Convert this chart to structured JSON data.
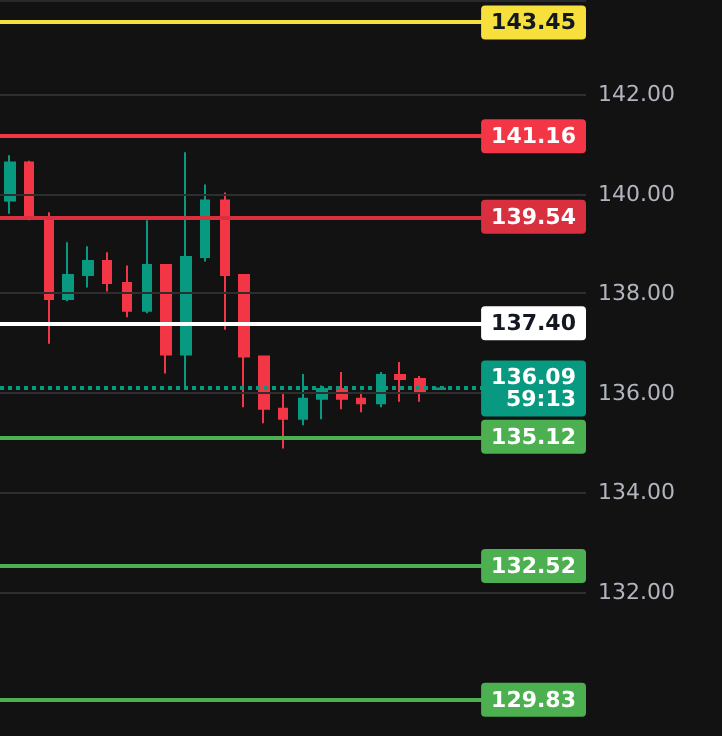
{
  "chart_data": {
    "type": "candlestick",
    "categories": [
      null,
      null,
      null,
      null,
      null,
      null,
      null,
      null,
      null,
      null,
      null,
      null,
      null,
      null,
      null,
      null,
      null,
      null,
      null,
      null,
      null,
      null,
      null,
      null,
      null,
      null,
      null,
      null,
      null,
      null
    ],
    "ohlc": [
      [
        139.87,
        140.78,
        139.6,
        140.63
      ],
      [
        140.63,
        140.67,
        139.47,
        139.5
      ],
      [
        139.51,
        139.63,
        136.99,
        137.89
      ],
      [
        137.89,
        139.03,
        137.84,
        138.37
      ],
      [
        138.37,
        138.95,
        138.12,
        138.65
      ],
      [
        138.65,
        138.83,
        138.04,
        138.21
      ],
      [
        138.21,
        138.56,
        137.52,
        137.65
      ],
      [
        137.65,
        139.47,
        137.6,
        138.57
      ],
      [
        138.57,
        138.57,
        136.39,
        136.77
      ],
      [
        136.77,
        140.84,
        136.08,
        138.73
      ],
      [
        138.73,
        140.19,
        138.64,
        139.87
      ],
      [
        139.87,
        140.03,
        137.27,
        138.37
      ],
      [
        138.37,
        138.37,
        135.71,
        136.73
      ],
      [
        136.73,
        136.73,
        135.39,
        135.68
      ],
      [
        135.68,
        135.98,
        134.88,
        135.48
      ],
      [
        135.48,
        136.38,
        135.35,
        135.88
      ],
      [
        135.88,
        136.15,
        135.47,
        136.08
      ],
      [
        136.08,
        136.42,
        135.67,
        135.88
      ],
      [
        135.88,
        136.02,
        135.61,
        135.79
      ],
      [
        135.79,
        136.42,
        135.71,
        136.36
      ],
      [
        136.36,
        136.62,
        135.82,
        136.28
      ],
      [
        136.28,
        136.34,
        135.82,
        136.04
      ],
      [
        136.08,
        136.1,
        136.08,
        136.09
      ],
      null,
      null,
      null,
      null,
      null,
      null,
      null
    ],
    "colors": [
      "#089981",
      "#f23645",
      "#f23645",
      "#089981",
      "#089981",
      "#f23645",
      "#f23645",
      "#089981",
      "#f23645",
      "#089981",
      "#089981",
      "#f23645",
      "#f23645",
      "#f23645",
      "#f23645",
      "#089981",
      "#089981",
      "#f23645",
      "#f23645",
      "#089981",
      "#f23645",
      "#f23645",
      "#089981",
      null,
      null,
      null,
      null,
      null,
      null,
      null
    ],
    "ylim": [
      129.1,
      143.9
    ],
    "yticks": [
      {
        "value": 132,
        "label": "132.00"
      },
      {
        "value": 134,
        "label": "134.00"
      },
      {
        "value": 136,
        "label": "136.00"
      },
      {
        "value": 138,
        "label": "138.00"
      },
      {
        "value": 140,
        "label": "140.00"
      },
      {
        "value": 142,
        "label": "142.00"
      }
    ],
    "tick_labels": "y",
    "grid": "y",
    "ref_lines": [
      {
        "axis": "y",
        "value": 143.45,
        "label": "143.45",
        "color": "#f7e03c"
      },
      {
        "axis": "y",
        "value": 141.16,
        "label": "141.16",
        "color": "#f23645"
      },
      {
        "axis": "y",
        "value": 139.54,
        "label": "139.54",
        "color": "#d9303f"
      },
      {
        "axis": "y",
        "value": 137.4,
        "label": "137.40",
        "color": "#ffffff"
      },
      {
        "axis": "y",
        "value": 136.09,
        "label": "136.09\n59:13",
        "color": "#089981",
        "line_style": "dotted"
      },
      {
        "axis": "y",
        "value": 135.12,
        "label": "135.12",
        "color": "#4caf50"
      },
      {
        "axis": "y",
        "value": 132.52,
        "label": "132.52",
        "color": "#4caf50"
      },
      {
        "axis": "y",
        "value": 129.83,
        "label": "129.83",
        "color": "#4caf50"
      }
    ]
  }
}
